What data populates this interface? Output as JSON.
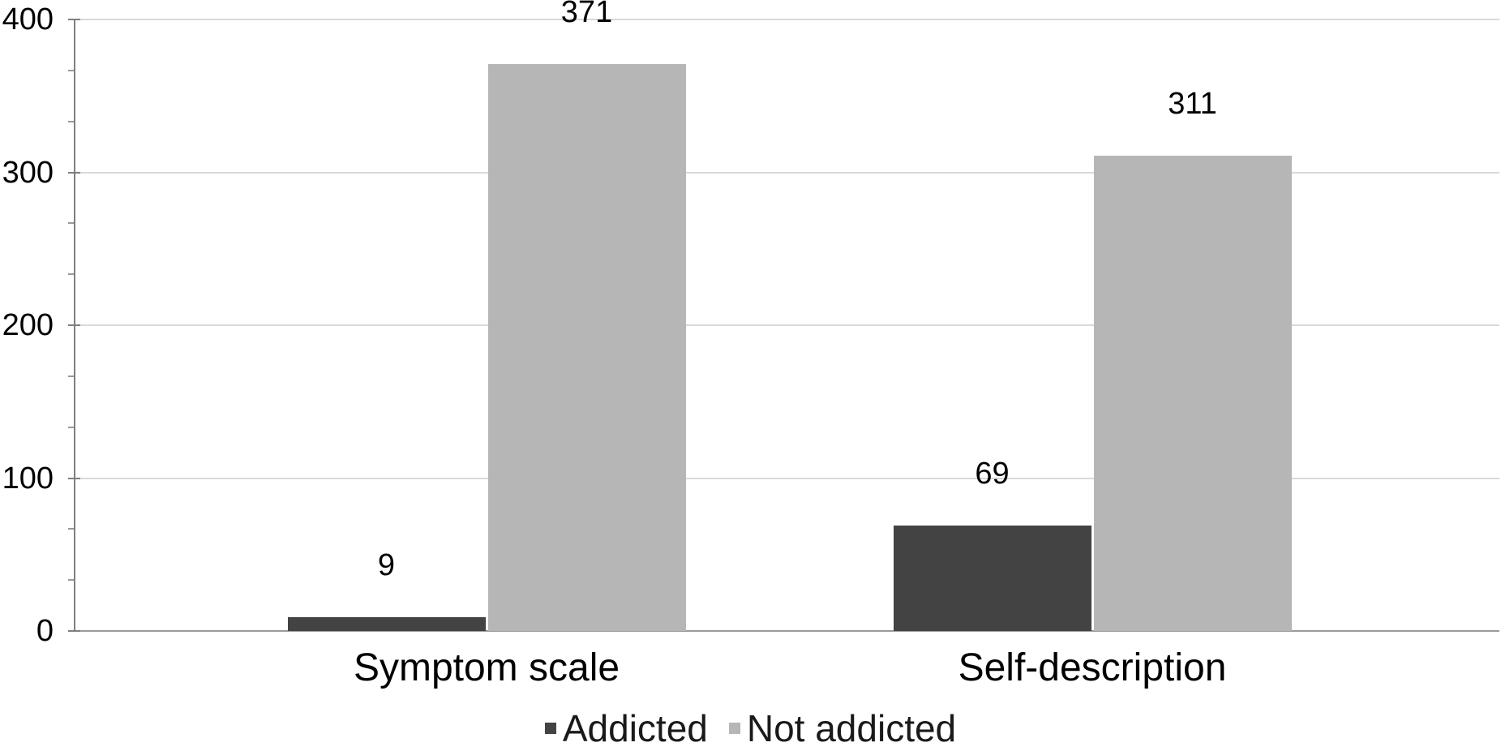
{
  "chart_data": {
    "type": "bar",
    "title": "",
    "xlabel": "",
    "ylabel": "",
    "categories": [
      "Symptom scale",
      "Self-description"
    ],
    "series": [
      {
        "name": "Addicted",
        "color": "#434343",
        "values": [
          9,
          69
        ]
      },
      {
        "name": "Not addicted",
        "color": "#b6b6b6",
        "values": [
          371,
          311
        ]
      }
    ],
    "data_labels": true,
    "ylim": [
      0,
      400
    ],
    "y_major_ticks": [
      0,
      100,
      200,
      300,
      400
    ],
    "y_minor_divisions": 3,
    "grid": "horizontal-major",
    "legend_position": "bottom-center",
    "colors": {
      "grid_line": "#d9d9d9",
      "y_axis_line": "#7f7f7f",
      "x_axis_line": "#9a9a9a",
      "text": "#000000",
      "background": "#ffffff"
    }
  }
}
